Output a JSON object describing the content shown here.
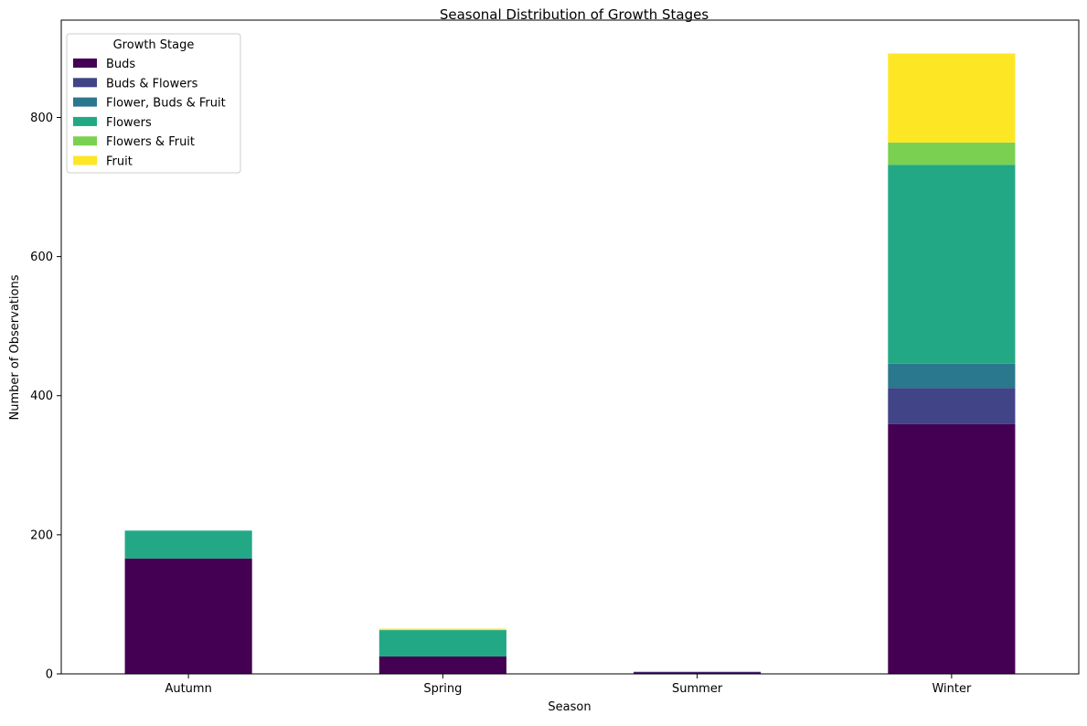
{
  "chart_data": {
    "type": "bar",
    "stacked": true,
    "title": "Seasonal Distribution of Growth Stages",
    "xlabel": "Season",
    "ylabel": "Number of Observations",
    "categories": [
      "Autumn",
      "Spring",
      "Summer",
      "Winter"
    ],
    "ylim": [
      0,
      940
    ],
    "yticks": [
      0,
      200,
      400,
      600,
      800
    ],
    "grid": false,
    "legend": {
      "title": "Growth Stage",
      "placement": "top-left"
    },
    "series": [
      {
        "name": "Buds",
        "color": "#440154",
        "values": [
          166,
          25,
          2,
          359
        ]
      },
      {
        "name": "Buds & Flowers",
        "color": "#414487",
        "values": [
          0,
          0,
          1,
          52
        ]
      },
      {
        "name": "Flower, Buds & Fruit",
        "color": "#2a788e",
        "values": [
          0,
          0,
          0,
          35
        ]
      },
      {
        "name": "Flowers",
        "color": "#22a884",
        "values": [
          40,
          38,
          0,
          286
        ]
      },
      {
        "name": "Flowers & Fruit",
        "color": "#7ad151",
        "values": [
          0,
          0,
          0,
          32
        ]
      },
      {
        "name": "Fruit",
        "color": "#fde725",
        "values": [
          0,
          2,
          0,
          128
        ]
      }
    ]
  }
}
